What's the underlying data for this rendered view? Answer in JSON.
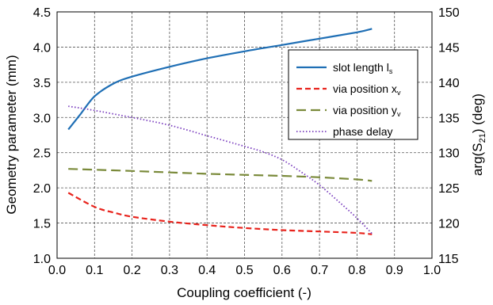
{
  "chart_data": {
    "type": "line",
    "xlabel": "Coupling coefficient (-)",
    "ylabel": {
      "main": "Geometry parameter (mm)"
    },
    "y2label": {
      "base": "arg(S",
      "sub": "21",
      "rest": ") (deg)"
    },
    "xlim": [
      0.0,
      1.0
    ],
    "ylim": [
      1.0,
      4.5
    ],
    "y2lim": [
      115,
      150
    ],
    "xticks": [
      "0.0",
      "0.1",
      "0.2",
      "0.3",
      "0.4",
      "0.5",
      "0.6",
      "0.7",
      "0.8",
      "0.9",
      "1.0"
    ],
    "yticks": [
      "1.0",
      "1.5",
      "2.0",
      "2.5",
      "3.0",
      "3.5",
      "4.0",
      "4.5"
    ],
    "y2ticks": [
      "115",
      "120",
      "125",
      "130",
      "135",
      "140",
      "145",
      "150"
    ],
    "grid": true,
    "legend_position": "top-right",
    "series": [
      {
        "name": {
          "base": "slot length l",
          "sub": "s"
        },
        "axis": "left",
        "color": "#1f6fb5",
        "style": "solid",
        "x": [
          0.03,
          0.06,
          0.1,
          0.15,
          0.2,
          0.3,
          0.4,
          0.5,
          0.6,
          0.7,
          0.8,
          0.84
        ],
        "y": [
          2.83,
          3.03,
          3.3,
          3.48,
          3.58,
          3.72,
          3.84,
          3.94,
          4.03,
          4.12,
          4.21,
          4.26
        ]
      },
      {
        "name": {
          "base": "via position x",
          "sub": "v"
        },
        "axis": "left",
        "color": "#e8231c",
        "style": "dashed",
        "x": [
          0.03,
          0.1,
          0.15,
          0.2,
          0.3,
          0.4,
          0.5,
          0.6,
          0.7,
          0.8,
          0.84
        ],
        "y": [
          1.93,
          1.73,
          1.65,
          1.59,
          1.52,
          1.47,
          1.43,
          1.4,
          1.38,
          1.36,
          1.34
        ]
      },
      {
        "name": {
          "base": "via position y",
          "sub": "v"
        },
        "axis": "left",
        "color": "#7a8a3a",
        "style": "longdash",
        "x": [
          0.03,
          0.2,
          0.4,
          0.6,
          0.7,
          0.8,
          0.84
        ],
        "y": [
          2.27,
          2.24,
          2.2,
          2.17,
          2.15,
          2.12,
          2.1
        ]
      },
      {
        "name": {
          "base": "phase delay",
          "sub": ""
        },
        "axis": "right",
        "color": "#7b3fbf",
        "style": "dotted",
        "x": [
          0.03,
          0.1,
          0.2,
          0.3,
          0.4,
          0.5,
          0.55,
          0.6,
          0.65,
          0.7,
          0.75,
          0.8,
          0.84
        ],
        "y": [
          136.6,
          136.0,
          135.0,
          133.9,
          132.4,
          130.9,
          130.1,
          129.0,
          127.3,
          125.4,
          123.1,
          120.7,
          118.5
        ]
      }
    ]
  }
}
